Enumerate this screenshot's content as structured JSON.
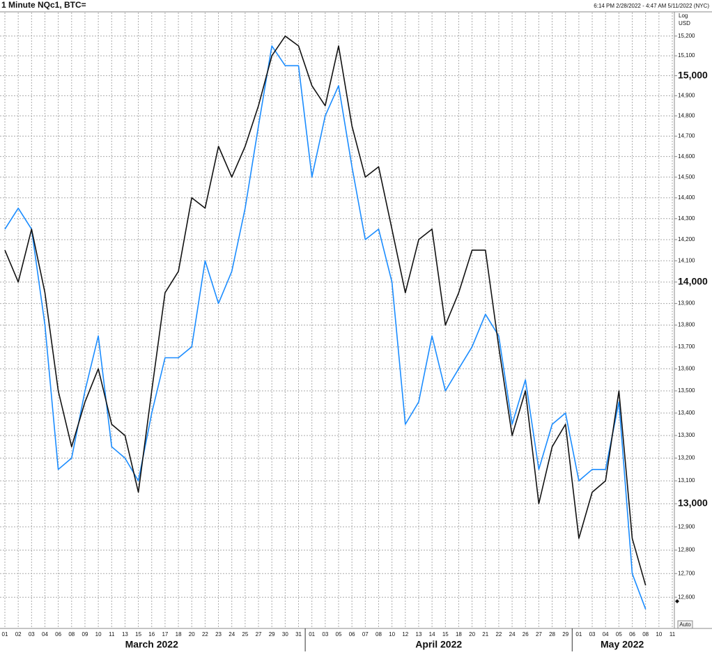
{
  "chart_data": {
    "type": "line",
    "title": "1 Minute NQc1, BTC=",
    "date_range": "6:14 PM 2/28/2022 - 4:47 AM 5/11/2022 (NYC)",
    "scale_label": "Log",
    "currency": "USD",
    "button": "Auto",
    "log_scale": true,
    "grid": true,
    "x": [
      "2022-03-01",
      "2022-03-02",
      "2022-03-03",
      "2022-03-04",
      "2022-03-06",
      "2022-03-08",
      "2022-03-09",
      "2022-03-10",
      "2022-03-11",
      "2022-03-13",
      "2022-03-15",
      "2022-03-16",
      "2022-03-17",
      "2022-03-18",
      "2022-03-20",
      "2022-03-22",
      "2022-03-23",
      "2022-03-24",
      "2022-03-25",
      "2022-03-27",
      "2022-03-29",
      "2022-03-30",
      "2022-03-31",
      "2022-04-01",
      "2022-04-03",
      "2022-04-05",
      "2022-04-06",
      "2022-04-07",
      "2022-04-08",
      "2022-04-10",
      "2022-04-12",
      "2022-04-13",
      "2022-04-14",
      "2022-04-15",
      "2022-04-18",
      "2022-04-20",
      "2022-04-21",
      "2022-04-22",
      "2022-04-24",
      "2022-04-26",
      "2022-04-27",
      "2022-04-28",
      "2022-04-29",
      "2022-05-01",
      "2022-05-03",
      "2022-05-04",
      "2022-05-05",
      "2022-05-06",
      "2022-05-08",
      "2022-05-10",
      "2022-05-11"
    ],
    "xticks": [
      "01",
      "02",
      "03",
      "04",
      "06",
      "08",
      "09",
      "10",
      "11",
      "13",
      "15",
      "16",
      "17",
      "18",
      "20",
      "22",
      "23",
      "24",
      "25",
      "27",
      "29",
      "30",
      "31",
      "01",
      "03",
      "05",
      "06",
      "07",
      "08",
      "10",
      "12",
      "13",
      "14",
      "15",
      "18",
      "20",
      "21",
      "22",
      "24",
      "26",
      "27",
      "28",
      "29",
      "01",
      "03",
      "04",
      "05",
      "06",
      "08",
      "10",
      "11"
    ],
    "months": [
      {
        "value": "2022-03",
        "label": "March 2022"
      },
      {
        "value": "2022-04",
        "label": "April 2022"
      },
      {
        "value": "2022-05",
        "label": "May 2022"
      }
    ],
    "ylim": [
      12475,
      15320
    ],
    "yticks": [
      {
        "value": 12600,
        "label": "12,600"
      },
      {
        "value": 12700,
        "label": "12,700"
      },
      {
        "value": 12800,
        "label": "12,800"
      },
      {
        "value": 12900,
        "label": "12,900"
      },
      {
        "value": 13000,
        "label": "13,000"
      },
      {
        "value": 13100,
        "label": "13,100"
      },
      {
        "value": 13200,
        "label": "13,200"
      },
      {
        "value": 13300,
        "label": "13,300"
      },
      {
        "value": 13400,
        "label": "13,400"
      },
      {
        "value": 13500,
        "label": "13,500"
      },
      {
        "value": 13600,
        "label": "13,600"
      },
      {
        "value": 13700,
        "label": "13,700"
      },
      {
        "value": 13800,
        "label": "13,800"
      },
      {
        "value": 13900,
        "label": "13,900"
      },
      {
        "value": 14000,
        "label": "14,000"
      },
      {
        "value": 14100,
        "label": "14,100"
      },
      {
        "value": 14200,
        "label": "14,200"
      },
      {
        "value": 14300,
        "label": "14,300"
      },
      {
        "value": 14400,
        "label": "14,400"
      },
      {
        "value": 14500,
        "label": "14,500"
      },
      {
        "value": 14600,
        "label": "14,600"
      },
      {
        "value": 14700,
        "label": "14,700"
      },
      {
        "value": 14800,
        "label": "14,800"
      },
      {
        "value": 14900,
        "label": "14,900"
      },
      {
        "value": 15000,
        "label": "15,000"
      },
      {
        "value": 15100,
        "label": "15,100"
      },
      {
        "value": 15200,
        "label": "15,200"
      }
    ],
    "series": [
      {
        "color": "#1a8cff",
        "values": [
          14250,
          14350,
          14250,
          13800,
          13150,
          13200,
          13500,
          13750,
          13250,
          13200,
          13100,
          13400,
          13650,
          13650,
          13700,
          14100,
          13900,
          14050,
          14350,
          14750,
          15150,
          15050,
          15050,
          14500,
          14800,
          14950,
          14550,
          14200,
          14250,
          14000,
          13350,
          13450,
          13750,
          13500,
          13600,
          13700,
          13850,
          13750,
          13350,
          13550,
          13150,
          13350,
          13400,
          13100,
          13150,
          13150,
          13450,
          12700,
          12550,
          null,
          null
        ]
      },
      {
        "color": "#111111",
        "values": [
          14150,
          14000,
          14250,
          13950,
          13500,
          13250,
          13450,
          13600,
          13350,
          13300,
          13050,
          13500,
          13950,
          14050,
          14400,
          14350,
          14650,
          14500,
          14650,
          14850,
          15100,
          15200,
          15150,
          14950,
          14850,
          15150,
          14750,
          14500,
          14550,
          14250,
          13950,
          14200,
          14250,
          13800,
          13950,
          14150,
          14150,
          13700,
          13300,
          13500,
          13000,
          13250,
          13350,
          12850,
          13050,
          13100,
          13500,
          12850,
          12650,
          null,
          null
        ]
      }
    ]
  }
}
